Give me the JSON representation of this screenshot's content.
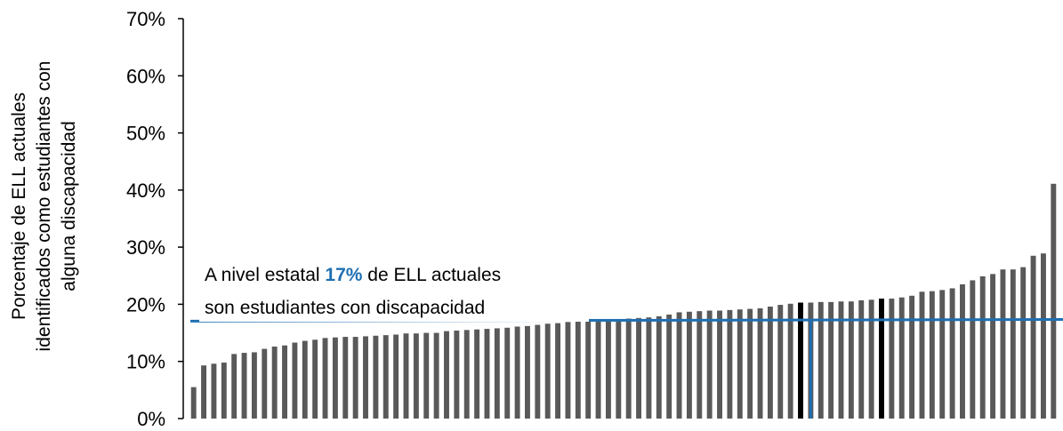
{
  "chart_data": {
    "type": "bar",
    "title": "",
    "xlabel": "",
    "ylabel": [
      "Porcentaje de ELL actuales",
      "identificados como estudiantes con",
      "alguna discapacidad"
    ],
    "y_tick_labels": [
      "0%",
      "10%",
      "20%",
      "30%",
      "40%",
      "50%",
      "60%",
      "70%"
    ],
    "ylim": [
      0,
      70
    ],
    "grid": false,
    "bar_color": "#595959",
    "highlight_color": "#000000",
    "reference_line_color": "#1f6fb2",
    "highlight_indices": [
      60,
      68
    ],
    "reference_bar_index": 61,
    "state_line_value": 17.2,
    "annotation": {
      "line1_prefix": "A nivel estatal ",
      "line1_highlight": "17%",
      "line1_suffix": " de ELL actuales",
      "line2": "son estudiantes con discapacidad"
    },
    "values": [
      5.5,
      9.3,
      9.6,
      9.8,
      11.3,
      11.5,
      11.6,
      12.2,
      12.6,
      12.8,
      13.3,
      13.6,
      13.8,
      14.1,
      14.2,
      14.3,
      14.3,
      14.4,
      14.5,
      14.6,
      14.7,
      14.9,
      14.9,
      15.0,
      15.0,
      15.3,
      15.4,
      15.5,
      15.6,
      15.7,
      15.8,
      15.9,
      16.1,
      16.2,
      16.4,
      16.6,
      16.7,
      16.9,
      17.0,
      17.0,
      17.1,
      17.2,
      17.4,
      17.5,
      17.6,
      17.7,
      17.9,
      18.2,
      18.6,
      18.7,
      18.8,
      18.9,
      18.9,
      19.0,
      19.1,
      19.2,
      19.3,
      19.6,
      19.9,
      20.1,
      20.3,
      20.3,
      20.4,
      20.4,
      20.5,
      20.5,
      20.7,
      20.8,
      21.0,
      21.0,
      21.2,
      21.5,
      22.2,
      22.3,
      22.5,
      22.8,
      23.5,
      24.2,
      24.9,
      25.3,
      26.1,
      26.1,
      26.5,
      28.5,
      28.9,
      41.1
    ]
  }
}
